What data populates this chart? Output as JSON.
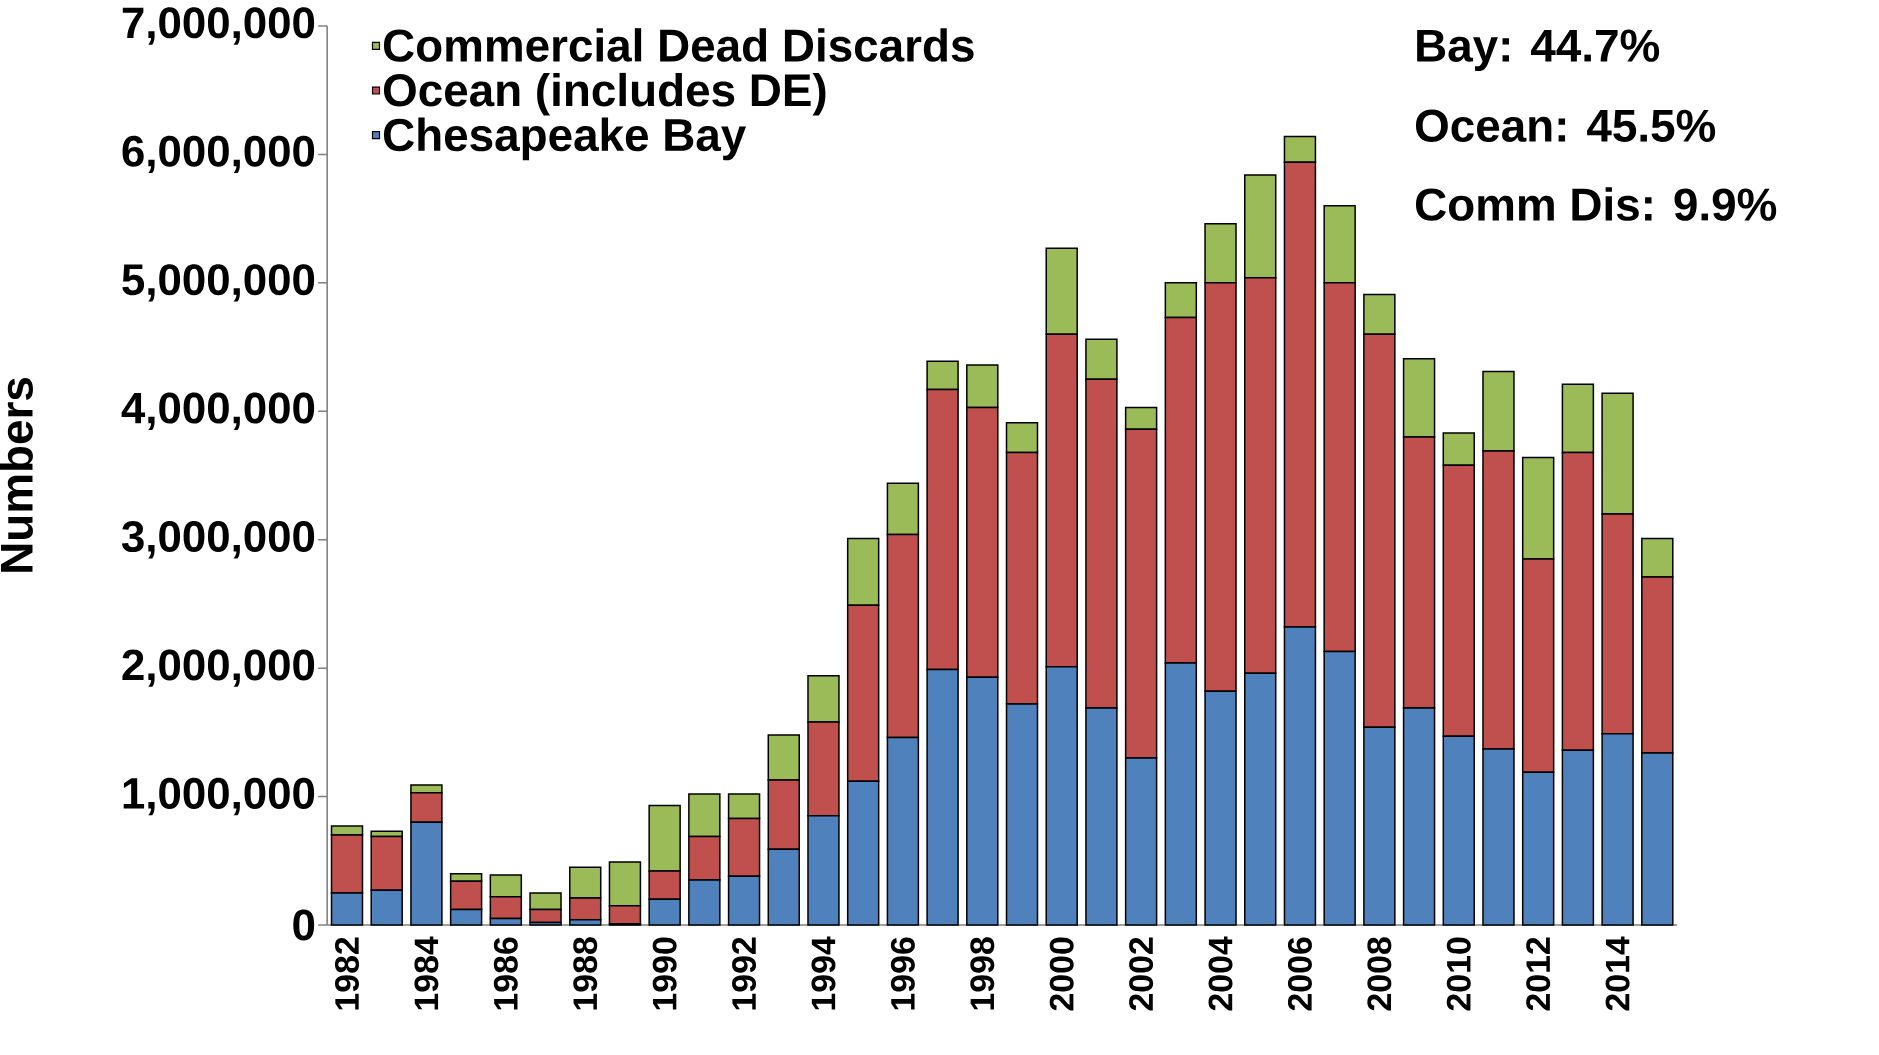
{
  "chart_data": {
    "type": "bar",
    "stacked": true,
    "ylabel": "Numbers",
    "legend": "top left",
    "categories": [
      "1982",
      null,
      "1984",
      null,
      "1986",
      null,
      "1988",
      null,
      "1990",
      null,
      "1992",
      null,
      "1994",
      null,
      "1996",
      null,
      "1998",
      null,
      "2000",
      null,
      "2002",
      null,
      "2004",
      null,
      "2006",
      null,
      "2008",
      null,
      "2010",
      null,
      "2012",
      null,
      "2014",
      null
    ],
    "series": [
      {
        "name": "Chesapeake Bay",
        "color": "#4f81bd",
        "values": [
          250000,
          270000,
          800000,
          120000,
          50000,
          20000,
          40000,
          10000,
          200000,
          350000,
          380000,
          590000,
          850000,
          1120000,
          1460000,
          1990000,
          1930000,
          1720000,
          2010000,
          1690000,
          1300000,
          2040000,
          1820000,
          1960000,
          2320000,
          2130000,
          1540000,
          1690000,
          1470000,
          1370000,
          1190000,
          1360000,
          1490000,
          1340000
        ]
      },
      {
        "name": "Ocean (includes DE)",
        "color": "#c0504d",
        "values": [
          450000,
          420000,
          230000,
          220000,
          170000,
          100000,
          170000,
          140000,
          220000,
          340000,
          450000,
          540000,
          730000,
          1370000,
          1580000,
          2180000,
          2100000,
          1960000,
          2590000,
          2560000,
          2560000,
          2690000,
          3180000,
          3080000,
          3620000,
          2870000,
          3060000,
          2110000,
          2110000,
          2320000,
          1660000,
          2320000,
          1710000,
          1370000
        ]
      },
      {
        "name": "Commercial Dead Discards",
        "color": "#9bbb59",
        "values": [
          70000,
          40000,
          60000,
          60000,
          170000,
          130000,
          240000,
          340000,
          510000,
          330000,
          190000,
          350000,
          360000,
          520000,
          400000,
          220000,
          330000,
          230000,
          670000,
          310000,
          170000,
          270000,
          460000,
          800000,
          200000,
          600000,
          310000,
          610000,
          250000,
          620000,
          790000,
          530000,
          940000,
          300000
        ]
      }
    ],
    "ylim": [
      0,
      7000000
    ],
    "yticks": [
      0,
      {
        "value": 1000000,
        "label": "1,000,000"
      },
      {
        "value": 2000000,
        "label": "2,000,000"
      },
      {
        "value": 3000000,
        "label": "3,000,000"
      },
      {
        "value": 4000000,
        "label": "4,000,000"
      },
      {
        "value": 5000000,
        "label": "5,000,000"
      },
      {
        "value": 6000000,
        "label": "6,000,000"
      },
      {
        "value": 7000000,
        "label": "7,000,000"
      }
    ],
    "annotations": [
      "Bay: 44.7%",
      "Ocean: 45.5%",
      "Comm Dis: 9.9%"
    ]
  }
}
